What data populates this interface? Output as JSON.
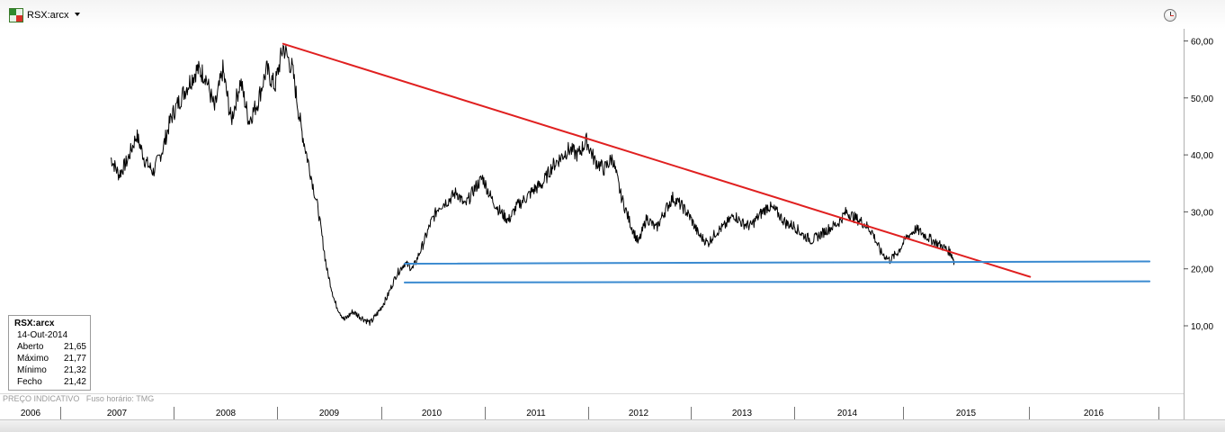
{
  "header": {
    "symbol": "RSX:arcx",
    "logo_icon": "exchange-logo-icon",
    "dropdown_icon": "chevron-down-icon",
    "clock_icon": "clock-icon"
  },
  "info_box": {
    "symbol": "RSX:arcx",
    "date": "14-Out-2014",
    "rows": [
      {
        "label": "Aberto",
        "value": "21,65"
      },
      {
        "label": "Máximo",
        "value": "21,77"
      },
      {
        "label": "Mínimo",
        "value": "21,32"
      },
      {
        "label": "Fecho",
        "value": "21,42"
      }
    ]
  },
  "footer": {
    "price_note": "PREÇO INDICATIVO",
    "timezone": "Fuso horário: TMG"
  },
  "chart_data": {
    "type": "line",
    "title": "",
    "xlabel": "",
    "ylabel": "",
    "y_ticks": [
      {
        "value": 10,
        "label": "10,00"
      },
      {
        "value": 20,
        "label": "20,00"
      },
      {
        "value": 30,
        "label": "30,00"
      },
      {
        "value": 40,
        "label": "40,00"
      },
      {
        "value": 50,
        "label": "50,00"
      },
      {
        "value": 60,
        "label": "60,00"
      }
    ],
    "x_ticks": [
      "2006",
      "2007",
      "2008",
      "2009",
      "2010",
      "2011",
      "2012",
      "2013",
      "2014",
      "2015",
      "2016"
    ],
    "xlim": [
      2006.0,
      2017.0
    ],
    "ylim": [
      0,
      66
    ],
    "grid": false,
    "series": [
      {
        "color": "#000000",
        "points": [
          [
            2006.67,
            39.5
          ],
          [
            2006.75,
            36.5
          ],
          [
            2006.83,
            39.0
          ],
          [
            2006.92,
            43.5
          ],
          [
            2007.0,
            39.0
          ],
          [
            2007.08,
            37.0
          ],
          [
            2007.17,
            41.0
          ],
          [
            2007.25,
            46.5
          ],
          [
            2007.33,
            49.5
          ],
          [
            2007.42,
            52.5
          ],
          [
            2007.5,
            55.0
          ],
          [
            2007.58,
            54.0
          ],
          [
            2007.67,
            48.0
          ],
          [
            2007.75,
            55.0
          ],
          [
            2007.83,
            46.0
          ],
          [
            2007.92,
            53.0
          ],
          [
            2008.0,
            46.0
          ],
          [
            2008.08,
            49.0
          ],
          [
            2008.17,
            55.0
          ],
          [
            2008.25,
            52.0
          ],
          [
            2008.33,
            59.0
          ],
          [
            2008.42,
            55.0
          ],
          [
            2008.5,
            45.0
          ],
          [
            2008.58,
            38.0
          ],
          [
            2008.67,
            30.0
          ],
          [
            2008.75,
            20.0
          ],
          [
            2008.83,
            14.0
          ],
          [
            2008.92,
            11.0
          ],
          [
            2009.0,
            12.5
          ],
          [
            2009.08,
            11.5
          ],
          [
            2009.17,
            10.5
          ],
          [
            2009.25,
            12.5
          ],
          [
            2009.33,
            15.0
          ],
          [
            2009.42,
            19.0
          ],
          [
            2009.5,
            21.0
          ],
          [
            2009.58,
            20.0
          ],
          [
            2009.67,
            24.0
          ],
          [
            2009.75,
            28.0
          ],
          [
            2009.83,
            31.0
          ],
          [
            2009.92,
            32.0
          ],
          [
            2010.0,
            33.5
          ],
          [
            2010.08,
            31.0
          ],
          [
            2010.17,
            34.0
          ],
          [
            2010.25,
            36.0
          ],
          [
            2010.33,
            32.5
          ],
          [
            2010.42,
            30.0
          ],
          [
            2010.5,
            28.5
          ],
          [
            2010.58,
            31.0
          ],
          [
            2010.67,
            32.5
          ],
          [
            2010.75,
            34.0
          ],
          [
            2010.83,
            35.0
          ],
          [
            2010.92,
            38.0
          ],
          [
            2011.0,
            39.5
          ],
          [
            2011.08,
            41.0
          ],
          [
            2011.17,
            40.0
          ],
          [
            2011.25,
            42.5
          ],
          [
            2011.33,
            39.0
          ],
          [
            2011.42,
            37.5
          ],
          [
            2011.5,
            39.5
          ],
          [
            2011.58,
            33.0
          ],
          [
            2011.67,
            28.0
          ],
          [
            2011.75,
            24.5
          ],
          [
            2011.83,
            29.0
          ],
          [
            2011.92,
            27.0
          ],
          [
            2012.0,
            30.0
          ],
          [
            2012.08,
            32.5
          ],
          [
            2012.17,
            31.0
          ],
          [
            2012.25,
            29.0
          ],
          [
            2012.33,
            26.0
          ],
          [
            2012.42,
            24.5
          ],
          [
            2012.5,
            26.5
          ],
          [
            2012.58,
            27.5
          ],
          [
            2012.67,
            29.5
          ],
          [
            2012.75,
            28.0
          ],
          [
            2012.83,
            27.5
          ],
          [
            2012.92,
            29.5
          ],
          [
            2013.0,
            31.0
          ],
          [
            2013.08,
            30.0
          ],
          [
            2013.17,
            28.0
          ],
          [
            2013.25,
            27.5
          ],
          [
            2013.33,
            26.0
          ],
          [
            2013.42,
            25.0
          ],
          [
            2013.5,
            26.0
          ],
          [
            2013.58,
            27.0
          ],
          [
            2013.67,
            28.0
          ],
          [
            2013.75,
            30.0
          ],
          [
            2013.83,
            29.0
          ],
          [
            2013.92,
            28.0
          ],
          [
            2014.0,
            26.5
          ],
          [
            2014.08,
            23.0
          ],
          [
            2014.17,
            21.5
          ],
          [
            2014.25,
            23.0
          ],
          [
            2014.33,
            25.5
          ],
          [
            2014.42,
            27.0
          ],
          [
            2014.5,
            26.0
          ],
          [
            2014.58,
            25.0
          ],
          [
            2014.67,
            24.0
          ],
          [
            2014.75,
            23.0
          ],
          [
            2014.79,
            21.4
          ]
        ]
      }
    ],
    "annotations": [
      {
        "type": "trendline",
        "color": "#e02020",
        "from": [
          2008.33,
          59.5
        ],
        "to": [
          2015.52,
          18.6
        ]
      },
      {
        "type": "trendline",
        "color": "#3a8ad0",
        "from": [
          2009.5,
          20.9
        ],
        "to": [
          2016.67,
          21.3
        ]
      },
      {
        "type": "trendline",
        "color": "#3a8ad0",
        "from": [
          2009.5,
          17.6
        ],
        "to": [
          2016.67,
          17.8
        ]
      }
    ]
  }
}
